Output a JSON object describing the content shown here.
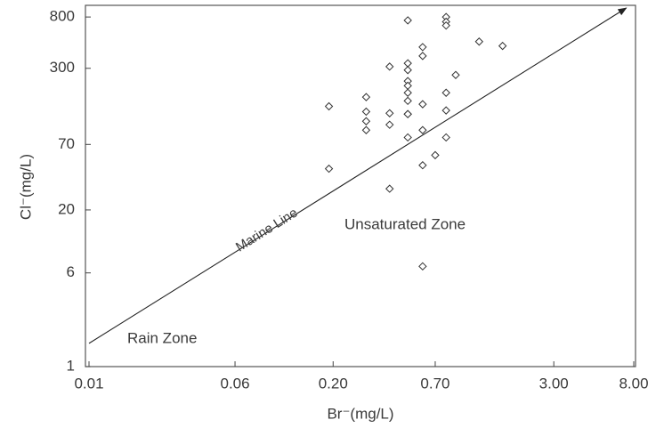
{
  "chart_data": {
    "type": "scatter",
    "x_label": "Br⁻(mg/L)",
    "y_label": "Cl⁻(mg/L)",
    "x_scale": "log",
    "y_scale": "log",
    "color": "#333333",
    "x": [
      0.5,
      0.8,
      0.8,
      0.8,
      1.2,
      1.6,
      0.6,
      0.6,
      0.5,
      0.4,
      0.5,
      0.9,
      0.5,
      0.5,
      0.5,
      0.8,
      0.3,
      0.5,
      0.6,
      0.19,
      0.8,
      0.3,
      0.4,
      0.5,
      0.5,
      0.3,
      0.4,
      0.3,
      0.6,
      0.5,
      0.8,
      0.7,
      0.6,
      0.19,
      0.4,
      0.6
    ],
    "values": [
      750,
      800,
      730,
      680,
      500,
      460,
      450,
      380,
      330,
      310,
      290,
      264,
      235,
      215,
      188,
      188,
      173,
      161,
      151,
      145,
      134,
      131,
      127,
      125,
      125,
      109,
      102,
      92,
      92,
      80,
      80,
      57,
      47,
      44,
      30,
      6.8
    ],
    "xlim": [
      0.01,
      8
    ],
    "ylim": [
      1,
      1000
    ],
    "xticks": [
      0.01,
      0.06,
      {
        "value": 0.2,
        "label": "0.20"
      },
      {
        "value": 0.7,
        "label": "0.70"
      },
      {
        "value": 3,
        "label": "3.00"
      },
      {
        "value": 8,
        "label": "8.00"
      }
    ],
    "yticks": [
      1,
      6,
      20,
      70,
      300,
      800
    ],
    "marine_line": {
      "label": "Marine Line",
      "x": [
        0.01,
        7.3
      ],
      "y": [
        1.56,
        950
      ]
    },
    "annotations": [
      "Unsaturated Zone",
      "Rain Zone"
    ]
  }
}
